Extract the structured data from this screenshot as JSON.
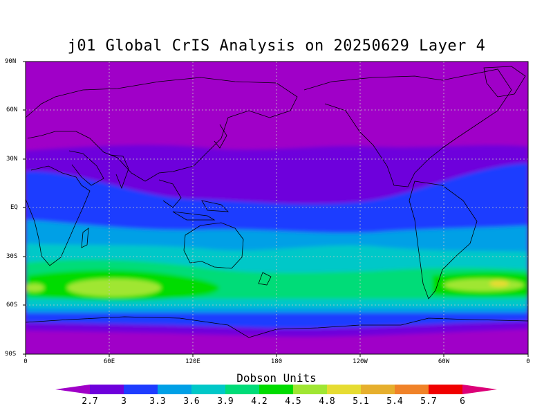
{
  "title": "j01 Global CrIS Analysis on 20250629 Layer 4",
  "lat_labels": [
    "90N",
    "60N",
    "30N",
    "EQ",
    "30S",
    "60S",
    "90S"
  ],
  "lon_labels": [
    "0",
    "60E",
    "120E",
    "180",
    "120W",
    "60W",
    "0"
  ],
  "colorbar": {
    "title": "Dobson Units",
    "labels": [
      "2.7",
      "3",
      "3.3",
      "3.6",
      "3.9",
      "4.2",
      "4.5",
      "4.8",
      "5.1",
      "5.4",
      "5.7",
      "6"
    ],
    "colors": [
      "#a000c8",
      "#6e00dc",
      "#1e3cff",
      "#00a0e6",
      "#00c8c8",
      "#00dc78",
      "#00dc00",
      "#a0e632",
      "#e6dc32",
      "#e6af2d",
      "#f08228",
      "#f00000",
      "#dc0078"
    ]
  },
  "map": {
    "type": "filled-contour",
    "projection": "cylindrical equidistant",
    "lon_range": [
      0,
      360
    ],
    "lat_range": [
      -90,
      90
    ],
    "grid": "dotted",
    "field": "ozone column (Layer 4)",
    "units": "Dobson Units"
  }
}
